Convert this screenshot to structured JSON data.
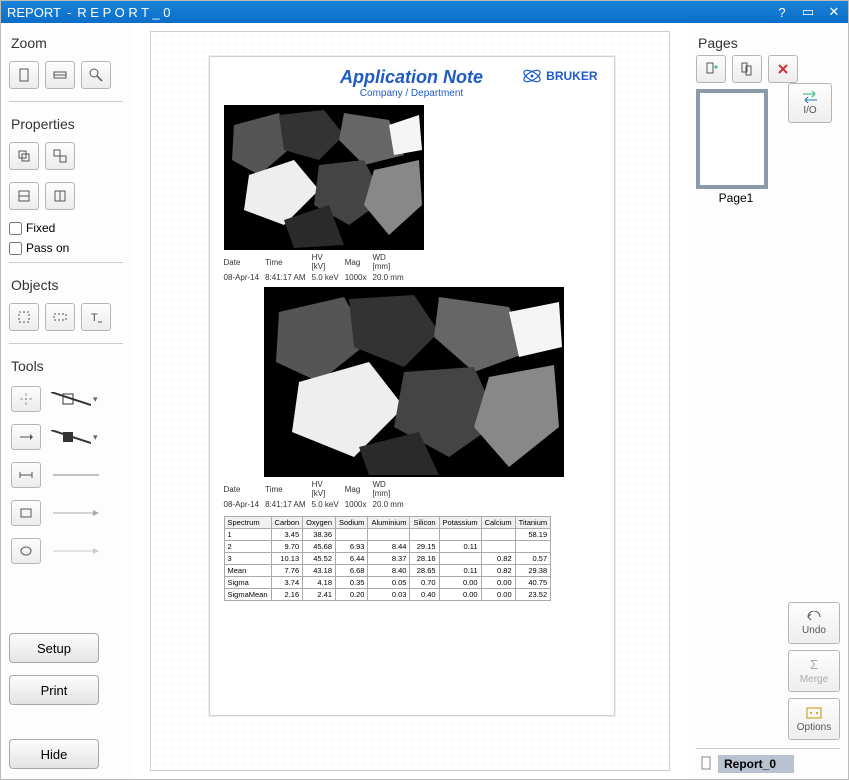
{
  "title": {
    "prefix": "REPORT",
    "name": "R E P O R T _ 0"
  },
  "left": {
    "zoom": "Zoom",
    "properties": "Properties",
    "fixed": "Fixed",
    "passon": "Pass on",
    "objects": "Objects",
    "tools": "Tools",
    "setup": "Setup",
    "print": "Print",
    "hide": "Hide"
  },
  "right": {
    "pages": "Pages",
    "io": "I/O",
    "page1": "Page1",
    "undo": "Undo",
    "merge": "Merge",
    "options": "Options",
    "doc": "Report_0"
  },
  "page": {
    "title": "Application Note",
    "subtitle": "Company / Department",
    "logo": "BRUKER",
    "meta": {
      "headers": [
        "Date",
        "Time",
        "HV\n[kV]",
        "Mag",
        "WD\n[mm]"
      ],
      "row": [
        "08-Apr-14",
        "8:41:17 AM",
        "5.0 keV",
        "1000x",
        "20.0 mm"
      ]
    },
    "table": {
      "headers": [
        "Spectrum",
        "Carbon",
        "Oxygen",
        "Sodium",
        "Aluminium",
        "Silicon",
        "Potassium",
        "Calcium",
        "Titanium"
      ],
      "rows": [
        [
          "1",
          "3.45",
          "38.36",
          "",
          "",
          "",
          "",
          "",
          "58.19"
        ],
        [
          "2",
          "9.70",
          "45.68",
          "6.93",
          "8.44",
          "29.15",
          "0.11",
          "",
          ""
        ],
        [
          "3",
          "10.13",
          "45.52",
          "6.44",
          "8.37",
          "28.16",
          "",
          "0.82",
          "0.57"
        ],
        [
          "Mean",
          "7.76",
          "43.18",
          "6.68",
          "8.40",
          "28.65",
          "0.11",
          "0.82",
          "29.38"
        ],
        [
          "Sigma",
          "3.74",
          "4.18",
          "0.35",
          "0.05",
          "0.70",
          "0.00",
          "0.00",
          "40.75"
        ],
        [
          "SigmaMean",
          "2.16",
          "2.41",
          "0.20",
          "0.03",
          "0.40",
          "0.00",
          "0.00",
          "23.52"
        ]
      ]
    }
  },
  "colors": {
    "titlebar": "#0a6ec8",
    "accent": "#1e5bc5",
    "thumbBorder": "#8a9aa8"
  }
}
